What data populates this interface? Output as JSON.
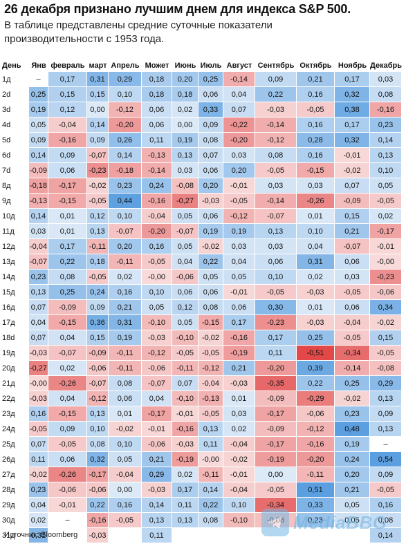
{
  "header": {
    "title": "26 декабря признано лучшим днем для индекса S&P 500.",
    "subtitle": "В таблице представлены средние суточные показатели производительности с 1953 года."
  },
  "footer": {
    "source": "Источник: Bloomberg"
  },
  "watermark": {
    "text": "MediaBBG",
    "icon": "telegram-plane-icon"
  },
  "colors": {
    "positive_strong": "#5b9fe0",
    "positive_light": "#dce9f7",
    "negative_strong": "#e24848",
    "negative_light": "#f8dada",
    "neutral": "#ffffff"
  },
  "chart_data": {
    "type": "heatmap",
    "title": "26 декабря признано лучшим днем для индекса S&P 500.",
    "subtitle": "В таблице представлены средние суточные показатели производительности с 1953 года.",
    "row_header": "День",
    "columns": [
      "Янв",
      "февраль",
      "март",
      "Апрель",
      "Может",
      "Июнь",
      "Июль",
      "Август",
      "Сентябрь",
      "Октябрь",
      "Ноябрь",
      "Декабрь"
    ],
    "rows": [
      {
        "day": "1д",
        "values": [
          "–",
          "0,17",
          "0,31",
          "0,29",
          "0,18",
          "0,20",
          "0,25",
          "-0,14",
          "0,09",
          "0,21",
          "0,17",
          "0,03"
        ]
      },
      {
        "day": "2d",
        "values": [
          "0,25",
          "0,15",
          "0,15",
          "0,10",
          "0,18",
          "0,18",
          "0,06",
          "0,04",
          "0,22",
          "0,16",
          "0,32",
          "0,08"
        ]
      },
      {
        "day": "3d",
        "values": [
          "0,19",
          "0,12",
          "0,00",
          "-0,12",
          "0,06",
          "0,02",
          "0,33",
          "0,07",
          "-0,03",
          "-0,05",
          "0,38",
          "-0,16"
        ]
      },
      {
        "day": "4d",
        "values": [
          "0,05",
          "-0,04",
          "0,14",
          "-0,20",
          "0,06",
          "0,00",
          "0,09",
          "-0,22",
          "-0,14",
          "0,16",
          "0,17",
          "0,23"
        ]
      },
      {
        "day": "5d",
        "values": [
          "0,09",
          "-0,16",
          "0,09",
          "0,26",
          "0,11",
          "0,19",
          "0,08",
          "-0,20",
          "-0,12",
          "0,28",
          "0,32",
          "0,14"
        ]
      },
      {
        "day": "6d",
        "values": [
          "0,14",
          "0,09",
          "-0,07",
          "0,14",
          "-0,13",
          "0,13",
          "0,07",
          "0,03",
          "0,08",
          "0,16",
          "-0,01",
          "0,13"
        ]
      },
      {
        "day": "7d",
        "values": [
          "-0,09",
          "0,06",
          "-0,23",
          "-0,18",
          "-0,14",
          "0,03",
          "0,06",
          "0,20",
          "-0,05",
          "-0,15",
          "-0,02",
          "0,10"
        ]
      },
      {
        "day": "8д",
        "values": [
          "-0,18",
          "-0,17",
          "-0,02",
          "0,23",
          "0,24",
          "-0,08",
          "0,20",
          "-0,01",
          "0,03",
          "0,03",
          "0,07",
          "0,05"
        ]
      },
      {
        "day": "9д",
        "values": [
          "-0,13",
          "-0,15",
          "-0,05",
          "0,44",
          "-0,16",
          "-0,27",
          "-0,03",
          "-0,05",
          "-0,14",
          "-0,26",
          "-0,09",
          "-0,05"
        ]
      },
      {
        "day": "10д",
        "values": [
          "0,14",
          "0,01",
          "0,12",
          "0,10",
          "-0,04",
          "0,05",
          "0,06",
          "-0,12",
          "-0,07",
          "0,01",
          "0,15",
          "0,02"
        ]
      },
      {
        "day": "11д",
        "values": [
          "0,03",
          "0,01",
          "0,13",
          "-0,07",
          "-0,20",
          "-0,07",
          "0,19",
          "0,19",
          "0,13",
          "0,10",
          "0,21",
          "-0,17"
        ]
      },
      {
        "day": "12д",
        "values": [
          "-0,04",
          "0,17",
          "-0,11",
          "0,20",
          "0,16",
          "0,05",
          "-0,02",
          "0,03",
          "0,03",
          "0,04",
          "-0,07",
          "-0,01"
        ]
      },
      {
        "day": "13д",
        "values": [
          "-0,07",
          "0,22",
          "0,18",
          "-0,11",
          "-0,05",
          "0,04",
          "0,22",
          "0,04",
          "0,06",
          "0,31",
          "0,06",
          "-0,00"
        ]
      },
      {
        "day": "14д",
        "values": [
          "0,23",
          "0,08",
          "-0,05",
          "0,02",
          "-0,00",
          "-0,06",
          "0,05",
          "0,05",
          "0,10",
          "0,02",
          "0,03",
          "-0,23"
        ]
      },
      {
        "day": "15д",
        "values": [
          "0,13",
          "0,25",
          "0,24",
          "0,16",
          "0,10",
          "0,06",
          "0,06",
          "-0,01",
          "-0,05",
          "-0,03",
          "-0,05",
          "-0,06"
        ]
      },
      {
        "day": "16д",
        "values": [
          "0,07",
          "-0,09",
          "0,09",
          "0,21",
          "0,05",
          "0,12",
          "0,08",
          "0,06",
          "0,30",
          "0,01",
          "0,06",
          "0,34"
        ]
      },
      {
        "day": "17д",
        "values": [
          "0,04",
          "-0,15",
          "0,36",
          "0,31",
          "-0,10",
          "0,05",
          "-0,15",
          "0,17",
          "-0,23",
          "-0,03",
          "-0,04",
          "-0,02"
        ]
      },
      {
        "day": "18d",
        "values": [
          "0,07",
          "0,04",
          "0,15",
          "0,19",
          "-0,03",
          "-0,10",
          "-0,02",
          "-0,16",
          "0,17",
          "0,25",
          "-0,05",
          "0,15"
        ]
      },
      {
        "day": "19д",
        "values": [
          "-0,03",
          "-0,07",
          "-0,09",
          "-0,11",
          "-0,12",
          "-0,05",
          "-0,05",
          "-0,19",
          "0,11",
          "-0,51",
          "-0,34",
          "-0,05"
        ]
      },
      {
        "day": "20д",
        "values": [
          "-0,27",
          "0,02",
          "-0,06",
          "-0,11",
          "-0,06",
          "-0,11",
          "-0,12",
          "0,21",
          "-0,20",
          "0,39",
          "-0,14",
          "-0,08"
        ]
      },
      {
        "day": "21д",
        "values": [
          "-0,00",
          "-0,26",
          "-0,07",
          "0,08",
          "-0,07",
          "0,07",
          "-0,04",
          "-0,03",
          "-0,35",
          "0,22",
          "0,25",
          "0,29"
        ]
      },
      {
        "day": "22д",
        "values": [
          "-0,03",
          "0,04",
          "-0,12",
          "0,06",
          "0,04",
          "-0,10",
          "-0,13",
          "0,01",
          "-0,09",
          "-0,29",
          "-0,02",
          "0,13"
        ]
      },
      {
        "day": "23д",
        "values": [
          "0,16",
          "-0,15",
          "0,13",
          "0,01",
          "-0,17",
          "-0,01",
          "-0,05",
          "0,03",
          "-0,17",
          "-0,06",
          "0,23",
          "0,09"
        ]
      },
      {
        "day": "24д",
        "values": [
          "-0,05",
          "0,09",
          "0,10",
          "-0,02",
          "-0,01",
          "-0,16",
          "0,13",
          "0,02",
          "-0,09",
          "-0,12",
          "0,48",
          "0,13"
        ]
      },
      {
        "day": "25д",
        "values": [
          "0,07",
          "-0,05",
          "0,08",
          "0,10",
          "-0,06",
          "-0,03",
          "0,11",
          "-0,04",
          "-0,17",
          "-0,16",
          "0,19",
          "–"
        ]
      },
      {
        "day": "26д",
        "values": [
          "0,11",
          "0,06",
          "0,32",
          "0,05",
          "0,21",
          "-0,19",
          "-0,00",
          "-0,02",
          "-0,19",
          "-0,20",
          "0,24",
          "0,54"
        ]
      },
      {
        "day": "27д",
        "values": [
          "-0,02",
          "-0,26",
          "-0,17",
          "-0,04",
          "0,29",
          "0,02",
          "-0,11",
          "-0,01",
          "0,00",
          "-0,11",
          "0,20",
          "0,09"
        ]
      },
      {
        "day": "28д",
        "values": [
          "0,23",
          "-0,06",
          "-0,06",
          "0,00",
          "-0,03",
          "0,17",
          "0,14",
          "-0,04",
          "-0,05",
          "0,51",
          "0,21",
          "-0,05"
        ]
      },
      {
        "day": "29д",
        "values": [
          "0,04",
          "-0,01",
          "0,22",
          "0,16",
          "0,14",
          "0,11",
          "0,22",
          "0,10",
          "-0,34",
          "0,33",
          "0,05",
          "0,16"
        ]
      },
      {
        "day": "30д",
        "values": [
          "0,02",
          "–",
          "-0,16",
          "-0,05",
          "0,13",
          "0,13",
          "0,08",
          "-0,10",
          "-0,08",
          "0,23",
          "0,05",
          "0,08"
        ]
      },
      {
        "day": "31д",
        "values": [
          "0,31",
          "",
          "-0,03",
          "",
          "0,11",
          "",
          "",
          "",
          "",
          "",
          "",
          "0,14"
        ]
      }
    ]
  }
}
